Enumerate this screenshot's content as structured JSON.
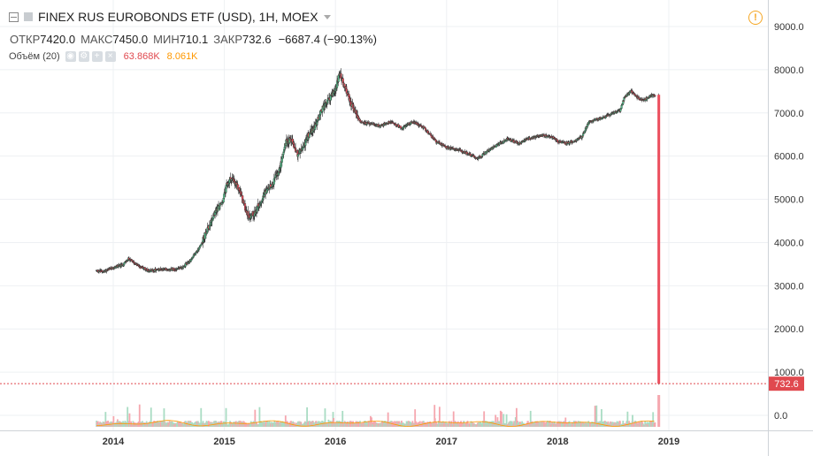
{
  "header": {
    "title": "FINEX RUS EUROBONDS ETF (USD), 1H, MOEX",
    "ohlc": {
      "open_label": "ОТКР",
      "open": "7420.0",
      "high_label": "МАКС",
      "high": "7450.0",
      "low_label": "МИН",
      "low": "710.1",
      "close_label": "ЗАКР",
      "close": "732.6",
      "change": "−6687.4 (−90.13%)"
    },
    "volume_indicator": {
      "label": "Объём (20)",
      "value1": "63.868K",
      "value2": "8.061K"
    }
  },
  "colors": {
    "up": "#53b987",
    "down": "#eb4d5c",
    "up_volume": "#a9dcc3",
    "down_volume": "#f5a6ae",
    "ma_line": "#ff9800",
    "price_label_bg": "#e0494f",
    "grid": "#eef0f3",
    "axis_text": "#333333",
    "warning": "#f5a623"
  },
  "chart_data": {
    "type": "candlestick",
    "y_axis": {
      "ticks": [
        0,
        1000,
        2000,
        3000,
        4000,
        5000,
        6000,
        7000,
        8000,
        9000
      ],
      "tick_labels": [
        "0.0",
        "1000.0",
        "2000.0",
        "3000.0",
        "4000.0",
        "5000.0",
        "6000.0",
        "7000.0",
        "8000.0",
        "9000.0"
      ],
      "range": [
        -200,
        9450
      ]
    },
    "x_axis": {
      "tick_labels": [
        "2014",
        "2015",
        "2016",
        "2017",
        "2018",
        "2019"
      ],
      "range": [
        2013.55,
        2019.5
      ]
    },
    "last_price": {
      "value": 732.6,
      "label": "732.6"
    },
    "price_path": [
      [
        2013.85,
        3350
      ],
      [
        2013.92,
        3330
      ],
      [
        2014.0,
        3420
      ],
      [
        2014.08,
        3480
      ],
      [
        2014.14,
        3620
      ],
      [
        2014.22,
        3470
      ],
      [
        2014.32,
        3350
      ],
      [
        2014.45,
        3380
      ],
      [
        2014.55,
        3390
      ],
      [
        2014.62,
        3420
      ],
      [
        2014.7,
        3600
      ],
      [
        2014.78,
        3900
      ],
      [
        2014.85,
        4300
      ],
      [
        2014.9,
        4600
      ],
      [
        2014.94,
        4800
      ],
      [
        2014.98,
        4900
      ],
      [
        2015.02,
        5300
      ],
      [
        2015.06,
        5500
      ],
      [
        2015.1,
        5350
      ],
      [
        2015.14,
        5200
      ],
      [
        2015.18,
        4850
      ],
      [
        2015.22,
        4600
      ],
      [
        2015.28,
        4700
      ],
      [
        2015.35,
        5100
      ],
      [
        2015.42,
        5300
      ],
      [
        2015.5,
        5700
      ],
      [
        2015.55,
        6300
      ],
      [
        2015.6,
        6400
      ],
      [
        2015.66,
        6050
      ],
      [
        2015.7,
        6150
      ],
      [
        2015.76,
        6500
      ],
      [
        2015.82,
        6700
      ],
      [
        2015.88,
        7100
      ],
      [
        2015.94,
        7300
      ],
      [
        2016.0,
        7550
      ],
      [
        2016.04,
        7900
      ],
      [
        2016.1,
        7500
      ],
      [
        2016.16,
        7100
      ],
      [
        2016.22,
        6800
      ],
      [
        2016.3,
        6750
      ],
      [
        2016.4,
        6700
      ],
      [
        2016.5,
        6800
      ],
      [
        2016.6,
        6650
      ],
      [
        2016.7,
        6800
      ],
      [
        2016.8,
        6650
      ],
      [
        2016.9,
        6350
      ],
      [
        2017.0,
        6200
      ],
      [
        2017.1,
        6150
      ],
      [
        2017.2,
        6050
      ],
      [
        2017.28,
        5950
      ],
      [
        2017.36,
        6100
      ],
      [
        2017.45,
        6250
      ],
      [
        2017.55,
        6400
      ],
      [
        2017.65,
        6300
      ],
      [
        2017.75,
        6420
      ],
      [
        2017.85,
        6480
      ],
      [
        2017.95,
        6450
      ],
      [
        2018.0,
        6350
      ],
      [
        2018.08,
        6300
      ],
      [
        2018.15,
        6350
      ],
      [
        2018.22,
        6450
      ],
      [
        2018.28,
        6800
      ],
      [
        2018.35,
        6850
      ],
      [
        2018.42,
        6900
      ],
      [
        2018.5,
        7000
      ],
      [
        2018.56,
        7050
      ],
      [
        2018.6,
        7350
      ],
      [
        2018.66,
        7500
      ],
      [
        2018.72,
        7350
      ],
      [
        2018.78,
        7300
      ],
      [
        2018.84,
        7400
      ],
      [
        2018.88,
        7420
      ],
      [
        2018.91,
        732.6
      ]
    ]
  }
}
